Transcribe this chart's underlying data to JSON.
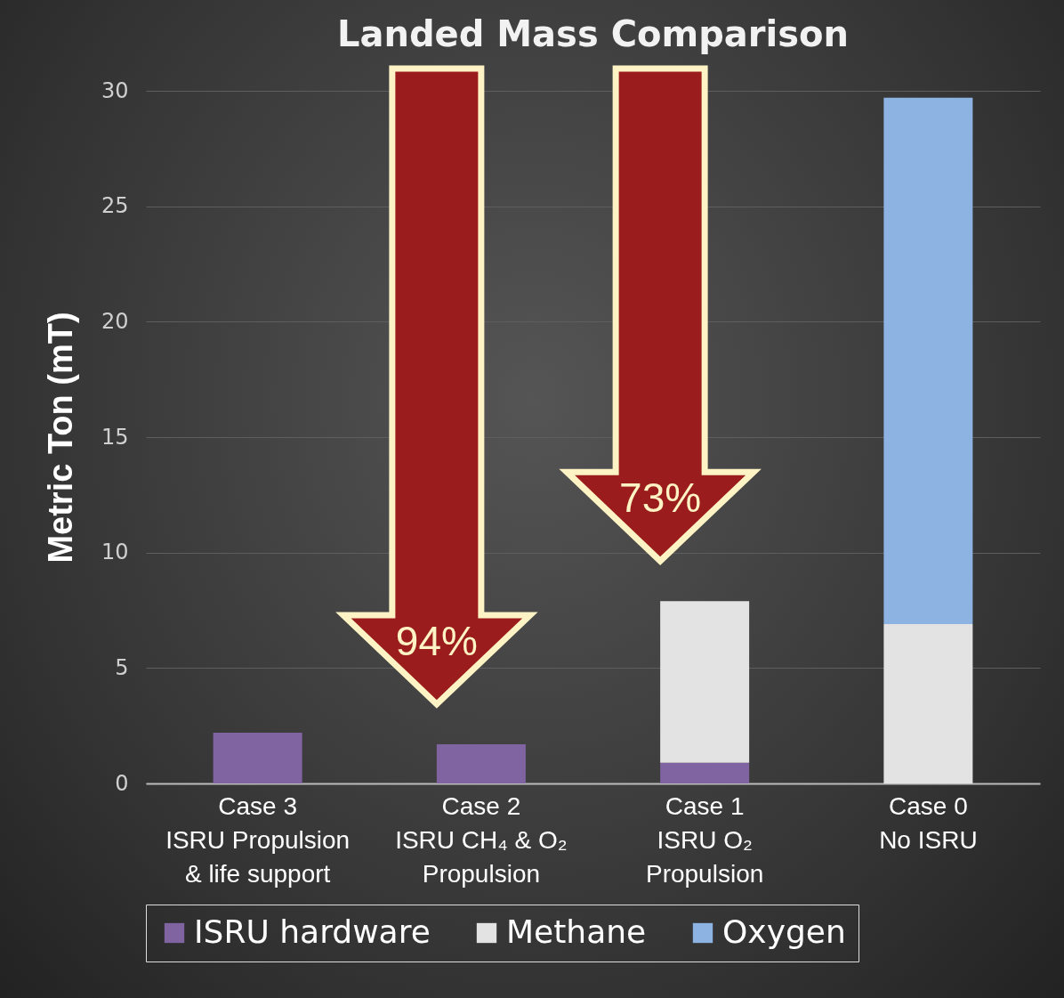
{
  "chart_data": {
    "type": "bar",
    "title": "Landed Mass Comparison",
    "ylabel": "Metric Ton (mT)",
    "categories": [
      "Case 3\nISRU Propulsion\n& life support",
      "Case 2\nISRU CH₄ & O₂\nPropulsion",
      "Case 1\nISRU O₂\nPropulsion",
      "Case 0\nNo ISRU"
    ],
    "series": [
      {
        "name": "ISRU hardware",
        "color": "#8064a2",
        "values": [
          2.2,
          1.7,
          0.9,
          null
        ]
      },
      {
        "name": "Methane",
        "color": "#e3e3e3",
        "values": [
          null,
          null,
          7.0,
          6.9
        ]
      },
      {
        "name": "Oxygen",
        "color": "#8db3e2",
        "values": [
          null,
          null,
          null,
          22.8
        ]
      }
    ],
    "stacked": true,
    "ylim": [
      0,
      30
    ],
    "yticks": [
      0,
      5,
      10,
      15,
      20,
      25,
      30
    ],
    "grid": "y",
    "legend": "bottom",
    "annotations": [
      "94%",
      "73%"
    ]
  }
}
